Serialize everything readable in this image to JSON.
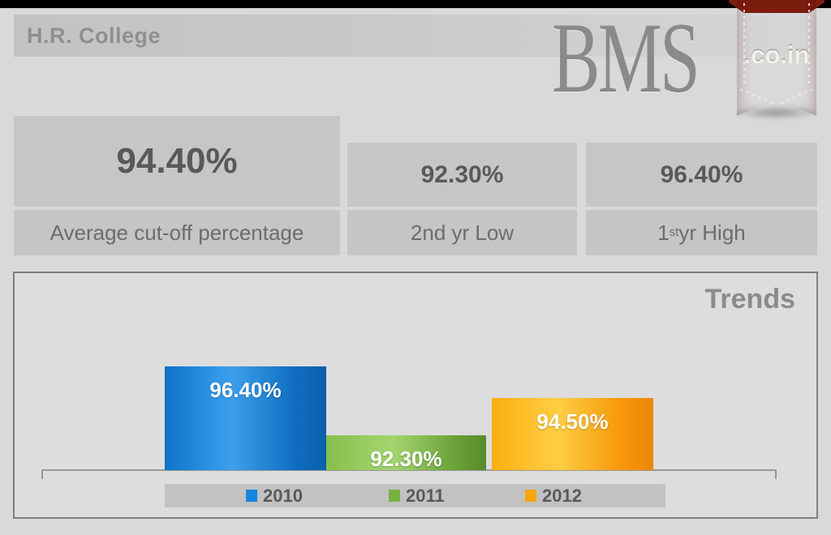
{
  "header": {
    "title": "H.R. College"
  },
  "logo": {
    "brand_text": "BMS",
    "ribbon_text": ".co.in",
    "ribbon_color": "#c0422c"
  },
  "stats": [
    {
      "value": "94.40%",
      "label": "Average cut-off percentage"
    },
    {
      "value": "92.30%",
      "label": "2nd yr Low"
    },
    {
      "value": "96.40%",
      "label_pre": "1",
      "label_sup": "st",
      "label_post": " yr High"
    }
  ],
  "chart_data": {
    "type": "bar",
    "title": "Trends",
    "categories": [
      "2010",
      "2011",
      "2012"
    ],
    "values": [
      96.4,
      92.3,
      94.5
    ],
    "labels": [
      "96.40%",
      "92.30%",
      "94.50%"
    ],
    "colors": [
      "#1586dd",
      "#79b13f",
      "#f9a50c"
    ],
    "ylim": [
      90.2,
      97.2
    ],
    "grid": false,
    "legend_position": "bottom",
    "value_labels_inside_bars": true
  }
}
